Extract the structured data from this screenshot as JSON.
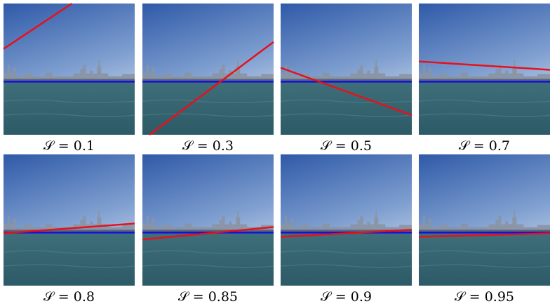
{
  "panels": [
    {
      "caption": "𝒮 = 0.1"
    },
    {
      "caption": "𝒮 = 0.3"
    },
    {
      "caption": "𝒮 = 0.5"
    },
    {
      "caption": "𝒮 = 0.7"
    },
    {
      "caption": "𝒮 = 0.8"
    },
    {
      "caption": "𝒮 = 0.85"
    },
    {
      "caption": "𝒮 = 0.9"
    },
    {
      "caption": "𝒮 = 0.95"
    }
  ]
}
